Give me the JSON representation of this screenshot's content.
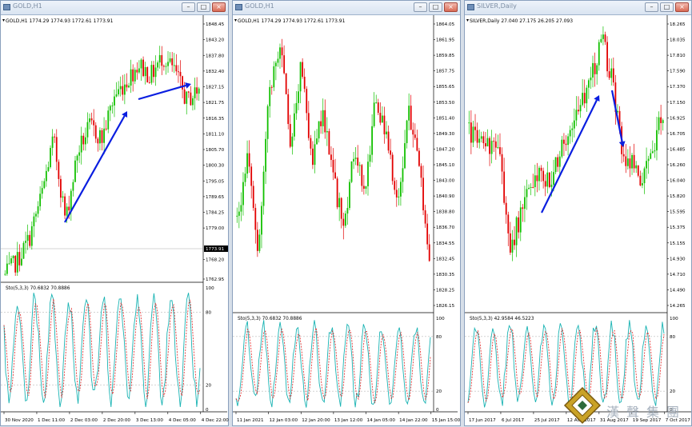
{
  "windows": [
    {
      "title": "GOLD,H1",
      "header": "GOLD,H1  1774.29 1774.93 1772.61 1773.91",
      "price_ticks": [
        "1848.45",
        "1843.20",
        "1837.80",
        "1832.40",
        "1827.15",
        "1821.75",
        "1816.35",
        "1811.10",
        "1805.70",
        "1800.30",
        "1795.05",
        "1789.65",
        "1784.25",
        "1779.00",
        "1773.91",
        "1768.20",
        "1762.95"
      ],
      "current_price": "1773.91",
      "osc_header": "Sto(5,3,3) 70.6832 70.8886",
      "osc_ticks": [
        "100",
        "80",
        "20",
        "0"
      ],
      "time_ticks": [
        "30 Nov 2020",
        "1 Dec 11:00",
        "2 Dec 03:00",
        "2 Dec 20:00",
        "3 Dec 13:00",
        "4 Dec 05:00",
        "4 Dec 22:00"
      ]
    },
    {
      "title": "GOLD,H1",
      "header": "GOLD,H1  1774.29 1774.93 1772.61 1773.91",
      "price_ticks": [
        "1864.05",
        "1861.95",
        "1859.85",
        "1857.75",
        "1855.65",
        "1853.50",
        "1851.40",
        "1849.30",
        "1847.20",
        "1845.10",
        "1843.00",
        "1840.90",
        "1838.80",
        "1836.70",
        "1834.55",
        "1832.45",
        "1830.35",
        "1828.25",
        "1826.15"
      ],
      "current_price": "",
      "osc_header": "Sto(5,3,3) 70.6832 70.8886",
      "osc_ticks": [
        "100",
        "80",
        "20",
        "0"
      ],
      "time_ticks": [
        "11 Jan 2021",
        "12 Jan 03:00",
        "12 Jan 20:00",
        "13 Jan 12:00",
        "14 Jan 05:00",
        "14 Jan 22:00",
        "15 Jan 15:00"
      ]
    },
    {
      "title": "SILVER,Daily",
      "header": "SILVER,Daily  27.040 27.175 26.205 27.093",
      "price_ticks": [
        "18.265",
        "18.035",
        "17.810",
        "17.590",
        "17.370",
        "17.150",
        "16.925",
        "16.705",
        "16.485",
        "16.260",
        "16.040",
        "15.820",
        "15.595",
        "15.375",
        "15.155",
        "14.930",
        "14.710",
        "14.490",
        "14.265"
      ],
      "current_price": "",
      "osc_header": "Sto(5,3,3) 42.9584 46.5223",
      "osc_ticks": [
        "100",
        "80",
        "20",
        "0"
      ],
      "time_ticks": [
        "17 Jun 2017",
        "6 Jul 2017",
        "25 Jul 2017",
        "12 Aug 2017",
        "31 Aug 2017",
        "19 Sep 2017",
        "7 Oct 2017"
      ]
    }
  ],
  "colors": {
    "up": "#12c000",
    "down": "#e20000",
    "arrow": "#0a1ee0",
    "stoch_main": "#19b3b3",
    "stoch_signal": "#e02020"
  },
  "icons": [
    "minimize-icon",
    "maximize-icon",
    "close-icon",
    "window-icon"
  ],
  "logo": {
    "chars": [
      "漢",
      "聲",
      "集",
      "團"
    ]
  }
}
